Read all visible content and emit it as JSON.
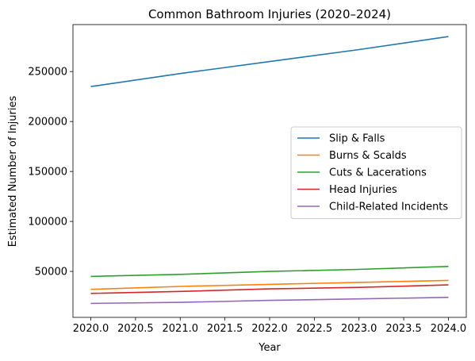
{
  "chart_data": {
    "type": "line",
    "title": "Common Bathroom Injuries (2020–2024)",
    "xlabel": "Year",
    "ylabel": "Estimated Number of Injuries",
    "x": [
      2020,
      2021,
      2022,
      2023,
      2024
    ],
    "xlim": [
      2019.8,
      2024.2
    ],
    "ylim": [
      4000,
      297000
    ],
    "xticks": [
      "2020.0",
      "2020.5",
      "2021.0",
      "2021.5",
      "2022.0",
      "2022.5",
      "2023.0",
      "2023.5",
      "2024.0"
    ],
    "yticks": [
      "50000",
      "100000",
      "150000",
      "200000",
      "250000"
    ],
    "grid": false,
    "legend_position": "center-right",
    "series": [
      {
        "name": "Slip & Falls",
        "color": "#1f77b4",
        "values": [
          235000,
          248000,
          260000,
          272000,
          285000
        ]
      },
      {
        "name": "Burns & Scalds",
        "color": "#ff7f0e",
        "values": [
          32000,
          35000,
          37000,
          39000,
          41000
        ]
      },
      {
        "name": "Cuts & Lacerations",
        "color": "#2ca02c",
        "values": [
          45000,
          47000,
          50000,
          52000,
          55000
        ]
      },
      {
        "name": "Head Injuries",
        "color": "#d62728",
        "values": [
          28000,
          30000,
          32500,
          34000,
          36500
        ]
      },
      {
        "name": "Child-Related Incidents",
        "color": "#9467bd",
        "values": [
          18000,
          19000,
          21000,
          22500,
          24000
        ]
      }
    ]
  }
}
